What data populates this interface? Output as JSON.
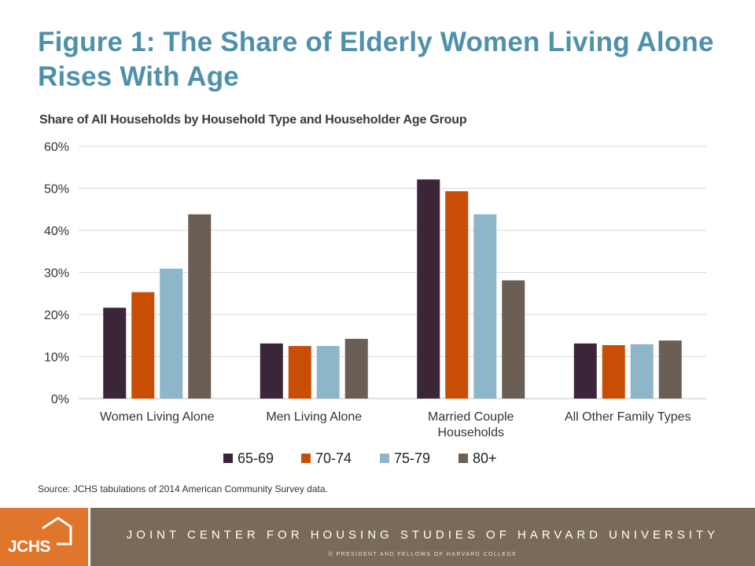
{
  "slide": {
    "title": "Figure 1: The Share of Elderly Women Living Alone Rises With Age",
    "source": "Source: JCHS tabulations of 2014 American Community Survey data."
  },
  "footer": {
    "logo_text": "JCHS",
    "logo_icon": "house-outline-icon",
    "organization": "JOINT CENTER FOR HOUSING STUDIES OF HARVARD UNIVERSITY",
    "copyright": "© PRESIDENT AND FELLOWS OF HARVARD COLLEGE"
  },
  "colors": {
    "title": "#4f91a8",
    "logo_orange": "#e0752c",
    "footer_band": "#7a6a58"
  },
  "chart_data": {
    "type": "bar",
    "title": "Share of All Households by Household Type and Householder Age Group",
    "categories": [
      [
        "Women Living Alone"
      ],
      [
        "Men Living Alone"
      ],
      [
        "Married Couple",
        "Households"
      ],
      [
        "All Other Family Types"
      ]
    ],
    "series": [
      {
        "name": "65-69",
        "color": "#3b2639",
        "values": [
          21.6,
          13.1,
          52.1,
          13.1
        ]
      },
      {
        "name": "70-74",
        "color": "#c94e05",
        "values": [
          25.3,
          12.5,
          49.3,
          12.7
        ]
      },
      {
        "name": "75-79",
        "color": "#8db6c8",
        "values": [
          30.9,
          12.5,
          43.8,
          12.9
        ]
      },
      {
        "name": "80+",
        "color": "#6b5e54",
        "values": [
          43.8,
          14.2,
          28.1,
          13.8
        ]
      }
    ],
    "ylim": [
      0,
      60
    ],
    "yticks": [
      0,
      10,
      20,
      30,
      40,
      50,
      60
    ],
    "ytick_labels": [
      "0%",
      "10%",
      "20%",
      "30%",
      "40%",
      "50%",
      "60%"
    ],
    "grid": true,
    "legend_position": "bottom"
  }
}
